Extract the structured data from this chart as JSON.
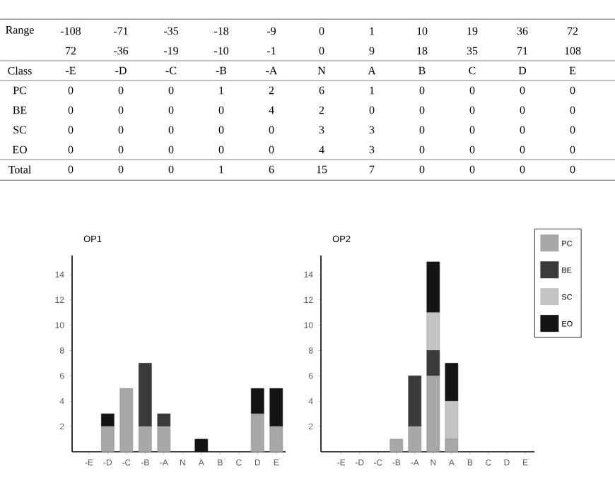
{
  "chart_data": [
    {
      "type": "other",
      "annotations": [
        [
          "Range",
          "-108",
          "-71",
          "-35",
          "-18",
          "-9",
          "0",
          "1",
          "10",
          "19",
          "36",
          "72"
        ],
        [
          null,
          "72",
          "-36",
          "-19",
          "-10",
          "-1",
          "0",
          "9",
          "18",
          "35",
          "71",
          "108"
        ],
        [
          "Class",
          "-E",
          "-D",
          "-C",
          "-B",
          "-A",
          "N",
          "A",
          "B",
          "C",
          "D",
          "E"
        ],
        [
          "PC",
          "0",
          "0",
          "0",
          "1",
          "2",
          "6",
          "1",
          "0",
          "0",
          "0",
          "0"
        ],
        [
          "BE",
          "0",
          "0",
          "0",
          "0",
          "4",
          "2",
          "0",
          "0",
          "0",
          "0",
          "0"
        ],
        [
          "SC",
          "0",
          "0",
          "0",
          "0",
          "0",
          "3",
          "3",
          "0",
          "0",
          "0",
          "0"
        ],
        [
          "EO",
          "0",
          "0",
          "0",
          "0",
          "0",
          "4",
          "3",
          "0",
          "0",
          "0",
          "0"
        ],
        [
          "Total",
          "0",
          "0",
          "0",
          "1",
          "6",
          "15",
          "7",
          "0",
          "0",
          "0",
          "0"
        ]
      ]
    },
    {
      "type": "bar",
      "stacked": true,
      "title": "OP1",
      "categories": [
        "-E",
        "-D",
        "-C",
        "-B",
        "-A",
        "N",
        "A",
        "B",
        "C",
        "D",
        "E"
      ],
      "ylim": [
        0,
        15.5
      ],
      "yticks": [
        2,
        4,
        6,
        8,
        10,
        12,
        14
      ],
      "legend": false,
      "series": [
        {
          "color": "#a8a8a8",
          "values": [
            0,
            2,
            5,
            2,
            2,
            0,
            0,
            0,
            0,
            3,
            2
          ]
        },
        {
          "color": "#3a3a3a",
          "values": [
            0,
            0,
            0,
            5,
            1,
            0,
            0,
            0,
            0,
            0,
            0
          ]
        },
        {
          "color": "#c4c4c4",
          "values": [
            0,
            0,
            0,
            0,
            0,
            0,
            0,
            0,
            0,
            0,
            0
          ]
        },
        {
          "color": "#141414",
          "values": [
            0,
            1,
            0,
            0,
            0,
            0,
            1,
            0,
            0,
            2,
            3
          ]
        }
      ]
    },
    {
      "type": "bar",
      "stacked": true,
      "title": "OP2",
      "categories": [
        "-E",
        "-D",
        "-C",
        "-B",
        "-A",
        "N",
        "A",
        "B",
        "C",
        "D",
        "E"
      ],
      "ylim": [
        0,
        15.5
      ],
      "yticks": [
        2,
        4,
        6,
        8,
        10,
        12,
        14
      ],
      "legend": "right",
      "series": [
        {
          "name": "PC",
          "color": "#a8a8a8",
          "values": [
            0,
            0,
            0,
            1,
            2,
            6,
            1,
            0,
            0,
            0,
            0
          ]
        },
        {
          "name": "BE",
          "color": "#3a3a3a",
          "values": [
            0,
            0,
            0,
            0,
            4,
            2,
            0,
            0,
            0,
            0,
            0
          ]
        },
        {
          "name": "SC",
          "color": "#c4c4c4",
          "values": [
            0,
            0,
            0,
            0,
            0,
            3,
            3,
            0,
            0,
            0,
            0
          ]
        },
        {
          "name": "EO",
          "color": "#141414",
          "values": [
            0,
            0,
            0,
            0,
            0,
            4,
            3,
            0,
            0,
            0,
            0
          ]
        }
      ]
    }
  ]
}
